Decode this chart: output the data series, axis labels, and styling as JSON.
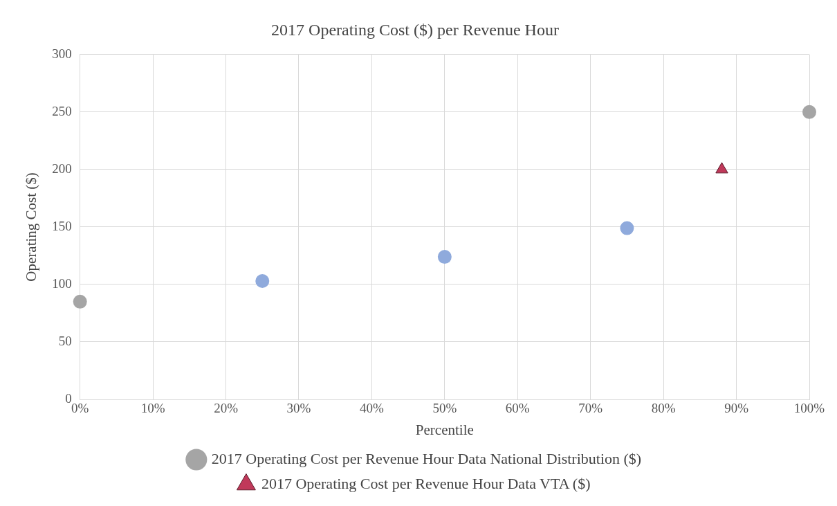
{
  "chart_data": {
    "type": "scatter",
    "title": "2017 Operating Cost ($) per Revenue Hour",
    "xlabel": "Percentile",
    "ylabel": "Operating Cost ($)",
    "series": [
      {
        "name": "2017 Operating Cost per Revenue Hour Data National Distribution ($)",
        "x": [
          0,
          25,
          50,
          75,
          100
        ],
        "values": [
          85,
          103,
          124,
          149,
          250
        ],
        "color": "#a5a5a5",
        "colors": [
          "#a5a5a5",
          "#8faadc",
          "#8faadc",
          "#8faadc",
          "#a5a5a5"
        ],
        "marker": "circle"
      },
      {
        "name": "2017 Operating Cost per Revenue Hour Data VTA ($)",
        "x": [
          88
        ],
        "values": [
          200
        ],
        "color": "#c0395a",
        "marker": "triangle"
      }
    ],
    "xlim": [
      0,
      100
    ],
    "xticks": [
      {
        "value": 0,
        "label": "0%"
      },
      {
        "value": 10,
        "label": "10%"
      },
      {
        "value": 20,
        "label": "20%"
      },
      {
        "value": 30,
        "label": "30%"
      },
      {
        "value": 40,
        "label": "40%"
      },
      {
        "value": 50,
        "label": "50%"
      },
      {
        "value": 60,
        "label": "60%"
      },
      {
        "value": 70,
        "label": "70%"
      },
      {
        "value": 80,
        "label": "80%"
      },
      {
        "value": 90,
        "label": "90%"
      },
      {
        "value": 100,
        "label": "100%"
      }
    ],
    "ylim": [
      0,
      300
    ],
    "yticks": [
      0,
      50,
      100,
      150,
      200,
      250,
      300
    ],
    "grid": true,
    "legend": "bottom"
  }
}
